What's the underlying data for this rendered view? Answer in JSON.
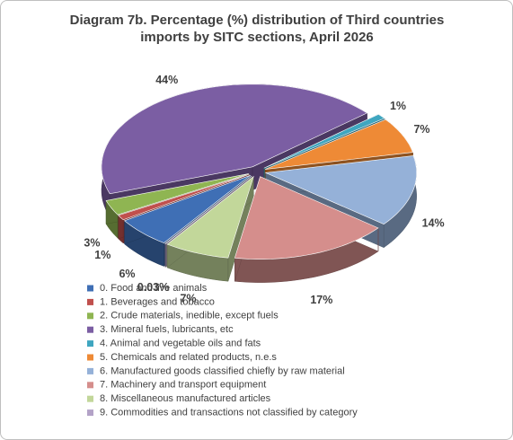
{
  "chart_data": {
    "type": "pie3d",
    "title": "Diagram 7b. Percentage (%) distribution of Third countries imports by SITC sections,  April 2026",
    "categories": [
      "0. Food and live animals",
      "1. Beverages and tobacco",
      "2. Crude materials, inedible, except fuels",
      "3. Mineral fuels, lubricants, etc",
      "4. Animal and vegetable oils and fats",
      "5. Chemicals and related products, n.e.s",
      "6. Manufactured goods classified chiefly by raw material",
      "7. Machinery and transport equipment",
      "8. Miscellaneous manufactured articles",
      "9. Commodities and transactions not classified by category"
    ],
    "values": [
      6,
      1,
      3,
      44,
      1,
      7,
      14,
      17,
      7,
      0.03
    ],
    "value_labels": [
      "6%",
      "1%",
      "3%",
      "44%",
      "1%",
      "7%",
      "14%",
      "17%",
      "7%",
      "0.03%"
    ],
    "colors": [
      "#3f6fb5",
      "#c0504d",
      "#8fb552",
      "#7b5ea3",
      "#3fa6c0",
      "#ee8a36",
      "#95b1d8",
      "#d58e8c",
      "#c2d79a",
      "#b3a2c7"
    ],
    "legend": "bottom"
  }
}
